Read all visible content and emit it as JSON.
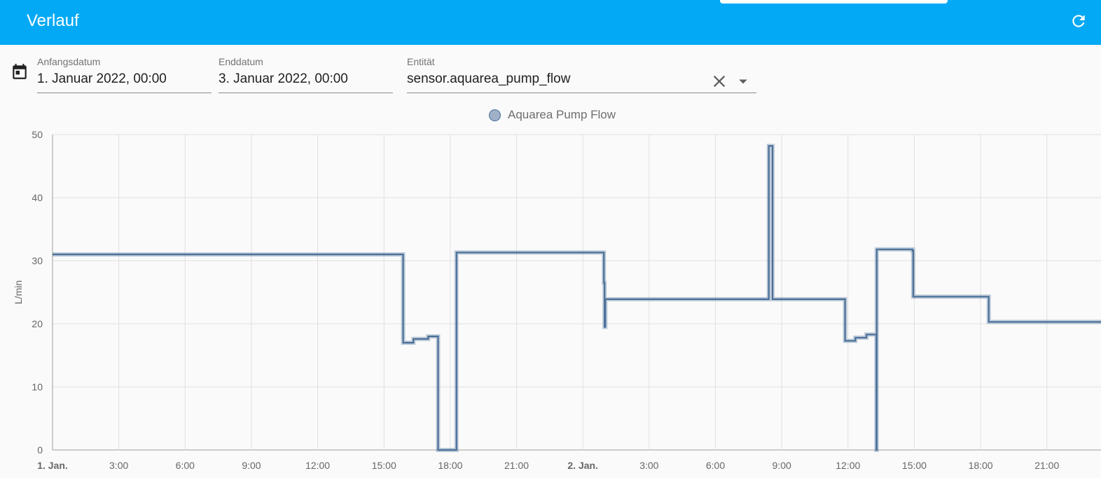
{
  "header": {
    "title": "Verlauf",
    "refresh_icon": "refresh-icon",
    "color": "#03a9f4"
  },
  "filters": {
    "calendar_icon": "calendar-icon",
    "start_date": {
      "label": "Anfangsdatum",
      "value": "1. Januar 2022, 00:00"
    },
    "end_date": {
      "label": "Enddatum",
      "value": "3. Januar 2022, 00:00"
    },
    "entity": {
      "label": "Entität",
      "value": "sensor.aquarea_pump_flow",
      "clear_icon": "close-icon",
      "dropdown_icon": "arrow-drop-down-icon"
    }
  },
  "chart_data": {
    "type": "line",
    "title": "",
    "ylabel": "L/min",
    "xlabel": "",
    "ylim": [
      0,
      50
    ],
    "xlim": [
      "2022-01-01 00:00",
      "2022-01-02 23:40"
    ],
    "yticks": [
      "0",
      "10",
      "20",
      "30",
      "40",
      "50"
    ],
    "xticks": [
      "1. Jan.",
      "3:00",
      "6:00",
      "9:00",
      "12:00",
      "15:00",
      "18:00",
      "21:00",
      "2. Jan.",
      "3:00",
      "6:00",
      "9:00",
      "12:00",
      "15:00",
      "18:00",
      "21:00"
    ],
    "grid": true,
    "legend": "top-center",
    "line_step": true,
    "color": "#4a6f98",
    "series": [
      {
        "name": "Aquarea Pump Flow",
        "points": [
          [
            "2022-01-01 00:00",
            31.0
          ],
          [
            "2022-01-01 12:00",
            31.0
          ],
          [
            "2022-01-01 15:50",
            31.0
          ],
          [
            "2022-01-01 15:52",
            17.0
          ],
          [
            "2022-01-01 16:20",
            17.6
          ],
          [
            "2022-01-01 17:00",
            18.0
          ],
          [
            "2022-01-01 17:25",
            18.0
          ],
          [
            "2022-01-01 17:27",
            0
          ],
          [
            "2022-01-01 18:15",
            0
          ],
          [
            "2022-01-01 18:17",
            31.3
          ],
          [
            "2022-01-02 00:55",
            31.3
          ],
          [
            "2022-01-02 00:57",
            26.5
          ],
          [
            "2022-01-02 00:59",
            19.5
          ],
          [
            "2022-01-02 01:01",
            23.9
          ],
          [
            "2022-01-02 08:22",
            23.9
          ],
          [
            "2022-01-02 08:25",
            48.2
          ],
          [
            "2022-01-02 08:32",
            48.2
          ],
          [
            "2022-01-02 08:35",
            23.9
          ],
          [
            "2022-01-02 11:50",
            23.9
          ],
          [
            "2022-01-02 11:52",
            17.3
          ],
          [
            "2022-01-02 12:20",
            17.8
          ],
          [
            "2022-01-02 12:50",
            18.3
          ],
          [
            "2022-01-02 13:15",
            18.3
          ],
          [
            "2022-01-02 13:17",
            0
          ],
          [
            "2022-01-02 13:18",
            31.8
          ],
          [
            "2022-01-02 14:55",
            31.6
          ],
          [
            "2022-01-02 14:57",
            24.3
          ],
          [
            "2022-01-02 18:20",
            24.3
          ],
          [
            "2022-01-02 18:22",
            20.3
          ],
          [
            "2022-01-02 23:40",
            20.3
          ]
        ]
      }
    ]
  }
}
